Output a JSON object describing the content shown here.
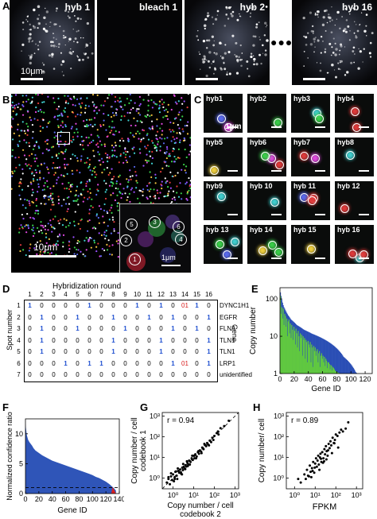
{
  "panels": {
    "A": {
      "letter": "A",
      "images": [
        "hyb 1",
        "bleach 1",
        "hyb 2",
        "hyb 16"
      ],
      "scale_label": "10μm",
      "ellipsis": "●●●"
    },
    "B": {
      "letter": "B",
      "scale_label": "10μm",
      "inset_scale": "1μm",
      "inset_spots": [
        "1",
        "2",
        "3",
        "4",
        "5",
        "6"
      ]
    },
    "C": {
      "letter": "C",
      "tiles": [
        "hyb1",
        "hyb2",
        "hyb3",
        "hyb4",
        "hyb5",
        "hyb6",
        "hyb7",
        "hyb8",
        "hyb9",
        "hyb 10",
        "hyb 11",
        "hyb 12",
        "hyb 13",
        "hyb 14",
        "hyb 15",
        "hyb 16"
      ],
      "scale_label": "1μm"
    },
    "D": {
      "letter": "D",
      "title": "Hybridization round",
      "row_axis": "Spot number",
      "gene_axis": "Gene",
      "rounds": [
        "1",
        "2",
        "3",
        "4",
        "5",
        "6",
        "7",
        "8",
        "9",
        "10",
        "11",
        "12",
        "13",
        "14",
        "15",
        "16"
      ],
      "rows": [
        {
          "spot": "1",
          "codes": [
            "1",
            "0",
            "0",
            "0",
            "0",
            "1",
            "0",
            "0",
            "0",
            "1",
            "0",
            "1",
            "0",
            "0",
            "1",
            "0"
          ],
          "gene": "DYNC1H1"
        },
        {
          "spot": "2",
          "codes": [
            "0",
            "1",
            "0",
            "0",
            "1",
            "0",
            "0",
            "1",
            "0",
            "0",
            "1",
            "0",
            "1",
            "0",
            "0",
            "1"
          ],
          "gene": "EGFR"
        },
        {
          "spot": "3",
          "codes": [
            "0",
            "1",
            "0",
            "0",
            "1",
            "0",
            "0",
            "0",
            "1",
            "0",
            "0",
            "0",
            "1",
            "0",
            "1",
            "0"
          ],
          "gene": "FLNA"
        },
        {
          "spot": "4",
          "codes": [
            "0",
            "1",
            "0",
            "0",
            "0",
            "0",
            "0",
            "1",
            "0",
            "0",
            "0",
            "1",
            "0",
            "0",
            "0",
            "1"
          ],
          "gene": "TLN1"
        },
        {
          "spot": "5",
          "codes": [
            "0",
            "1",
            "0",
            "0",
            "0",
            "0",
            "0",
            "1",
            "0",
            "0",
            "0",
            "1",
            "0",
            "0",
            "0",
            "1"
          ],
          "gene": "TLN1"
        },
        {
          "spot": "6",
          "codes": [
            "0",
            "0",
            "0",
            "1",
            "0",
            "1",
            "1",
            "0",
            "0",
            "0",
            "0",
            "0",
            "1",
            "0",
            "0",
            "1"
          ],
          "gene": "LRP1"
        },
        {
          "spot": "7",
          "codes": [
            "0",
            "0",
            "0",
            "0",
            "0",
            "0",
            "0",
            "0",
            "0",
            "0",
            "0",
            "0",
            "0",
            "0",
            "0",
            "0"
          ],
          "gene": "unidentified"
        }
      ],
      "red_error_cells": [
        [
          0,
          13
        ],
        [
          5,
          13
        ]
      ],
      "red_error_glyphs": [
        "01",
        "01"
      ]
    }
  },
  "chart_data": [
    {
      "panel": "E",
      "type": "bar",
      "xlabel": "Gene ID",
      "ylabel": "Copy number",
      "xticks": [
        "0",
        "20",
        "40",
        "60",
        "80",
        "100",
        "120"
      ],
      "yticks": [
        "1",
        "10",
        "100"
      ],
      "ylim": [
        1,
        200
      ],
      "yscale": "log",
      "series": [
        {
          "values": [
            150,
            120,
            95,
            80,
            68,
            60,
            55,
            50,
            46,
            42,
            39,
            36,
            34,
            32,
            30,
            28,
            27,
            26,
            25,
            24,
            23,
            22,
            21,
            20,
            19.5,
            19,
            18.5,
            18,
            17.5,
            17,
            16.5,
            16,
            15.5,
            15,
            14.7,
            14.4,
            14.1,
            13.8,
            13.5,
            13.2,
            13,
            12.7,
            12.4,
            12.1,
            11.8,
            11.6,
            11.4,
            11.2,
            11,
            10.8,
            10.6,
            10.4,
            10.2,
            10,
            9.8,
            9.6,
            9.4,
            9.2,
            9,
            8.8,
            8.6,
            8.4,
            8.2,
            8,
            7.8,
            7.6,
            7.4,
            7.2,
            7,
            6.8,
            6.6,
            6.4,
            6.2,
            6,
            5.8,
            5.6,
            5.4,
            5.2,
            5,
            4.8,
            4.6,
            4.4,
            4.2,
            4,
            3.8,
            3.6,
            3.4,
            3.2,
            3,
            2.8,
            2.7,
            2.6,
            2.5,
            2.4,
            2.3,
            2.2,
            2.1,
            2,
            1.9,
            1.8,
            1.7,
            1.6,
            1.5,
            1.4,
            1.3,
            1.2,
            1.1,
            1.05
          ]
        },
        {
          "values": [
            120,
            40,
            60,
            30,
            55,
            20,
            40,
            35,
            18,
            30,
            10,
            25,
            28,
            12,
            22,
            9,
            20,
            15,
            8,
            18,
            14,
            6,
            16,
            12,
            5,
            14,
            10,
            4,
            12,
            9,
            11,
            3,
            10,
            8,
            9,
            2.5,
            8,
            7,
            2,
            7.5,
            6,
            5,
            7,
            2,
            6,
            5,
            1.5,
            5.5,
            4,
            5,
            3,
            4,
            4.5,
            2,
            3.5,
            4,
            1.5,
            3,
            3.5,
            2.5,
            3,
            2,
            2.8,
            1.6,
            2.5,
            2.2,
            1.4,
            2,
            2,
            1.8,
            1.3,
            1.7,
            1.6,
            1.2,
            1.5,
            1.4,
            1.3,
            1.2,
            1.15,
            1.1,
            1.1,
            1.05,
            1.05
          ]
        }
      ]
    },
    {
      "panel": "F",
      "type": "area",
      "xlabel": "Gene ID",
      "ylabel": "Normalized confidence ratio",
      "xticks": [
        "0",
        "20",
        "40",
        "60",
        "80",
        "100",
        "120",
        "140"
      ],
      "yticks": [
        "0",
        "5",
        "10"
      ],
      "xlim": [
        0,
        140
      ],
      "ylim": [
        0,
        12.5
      ],
      "x": [
        0,
        2,
        4,
        6,
        8,
        10,
        12,
        15,
        20,
        25,
        30,
        35,
        40,
        45,
        50,
        55,
        60,
        65,
        70,
        75,
        80,
        85,
        90,
        95,
        100,
        105,
        110,
        115,
        120,
        125,
        128,
        130,
        132,
        135
      ],
      "values": [
        11.6,
        9.8,
        9.0,
        8.6,
        8.3,
        8.0,
        7.6,
        7.2,
        6.8,
        6.4,
        6.1,
        5.8,
        5.5,
        5.3,
        5.1,
        4.9,
        4.7,
        4.5,
        4.3,
        4.1,
        3.9,
        3.7,
        3.5,
        3.3,
        3.1,
        2.8,
        2.6,
        2.3,
        2.0,
        1.6,
        1.3,
        1.1,
        0.9,
        0.5
      ],
      "threshold": 1
    },
    {
      "panel": "G",
      "type": "scatter",
      "annotation": "r = 0.94",
      "xlabel": "Copy number / cell codebook 2",
      "ylabel": "Copy number / cell codebook 1",
      "xticks": [
        "10⁰",
        "10¹",
        "10²",
        "10³"
      ],
      "yticks": [
        "10⁰",
        "10¹",
        "10²",
        "10³"
      ],
      "xlim": [
        0.3,
        1500
      ],
      "ylim": [
        0.3,
        1500
      ],
      "scale": "log",
      "x": [
        0.5,
        0.6,
        0.7,
        0.8,
        0.9,
        1,
        1.1,
        1.2,
        1.3,
        1.5,
        1.6,
        1.8,
        2,
        2.2,
        2.5,
        2.8,
        3,
        3.3,
        3.6,
        4,
        4.4,
        5,
        5.5,
        6,
        7,
        8,
        9,
        10,
        11,
        12,
        14,
        16,
        18,
        20,
        23,
        26,
        30,
        35,
        40,
        45,
        50,
        60,
        70,
        80,
        100,
        130,
        160,
        200,
        300,
        500,
        0.8,
        1.2,
        1.7,
        2.4,
        3.1,
        3.9,
        4.7,
        6.5,
        8.5,
        13,
        17,
        24,
        33,
        55,
        90,
        150,
        0.6,
        1.4,
        2.7,
        5.2
      ],
      "y": [
        0.6,
        0.9,
        0.5,
        1.2,
        0.8,
        1.5,
        0.7,
        1.1,
        2,
        1.3,
        0.9,
        2.2,
        1.8,
        2.6,
        1.6,
        3.2,
        2.4,
        3.5,
        2.9,
        4.2,
        3.6,
        5.5,
        4.5,
        7,
        6,
        9,
        7.5,
        12,
        9,
        14,
        11,
        18,
        15,
        22,
        19,
        30,
        25,
        40,
        35,
        50,
        42,
        65,
        55,
        90,
        110,
        150,
        130,
        260,
        330,
        600,
        1.7,
        0.9,
        2.9,
        1.9,
        4.8,
        2.7,
        6.5,
        4.5,
        12,
        9,
        20,
        16,
        45,
        38,
        70,
        180,
        1.1,
        2.1,
        1.5,
        3.8
      ],
      "reference_line": "y = x"
    },
    {
      "panel": "H",
      "type": "scatter",
      "annotation": "r = 0.89",
      "xlabel": "FPKM",
      "ylabel": "Copy number/ cell",
      "xticks": [
        "10⁰",
        "10¹",
        "10²",
        "10³"
      ],
      "yticks": [
        "10⁰",
        "10¹",
        "10²",
        "10³"
      ],
      "xlim": [
        0.4,
        2000
      ],
      "ylim": [
        0.3,
        1500
      ],
      "scale": "log",
      "x": [
        2,
        3,
        3.5,
        4,
        5,
        5.5,
        6,
        7,
        8,
        9,
        10,
        11,
        12,
        13,
        14,
        15,
        17,
        18,
        20,
        22,
        25,
        28,
        30,
        33,
        36,
        40,
        45,
        50,
        55,
        60,
        70,
        80,
        90,
        100,
        120,
        150,
        180,
        220,
        300,
        400,
        6.5,
        9.5,
        16,
        24,
        35,
        65,
        130,
        4.5,
        7.5,
        19,
        27,
        42,
        85,
        1.5
      ],
      "y": [
        0.6,
        1.5,
        0.9,
        2.5,
        1.2,
        4,
        2,
        3,
        6,
        1.8,
        5,
        9,
        3.5,
        7,
        12,
        4.5,
        10,
        15,
        6,
        18,
        9,
        25,
        14,
        35,
        20,
        12,
        45,
        28,
        60,
        38,
        90,
        50,
        70,
        130,
        110,
        160,
        220,
        180,
        250,
        500,
        1.1,
        3.2,
        2.5,
        5.5,
        8,
        16,
        30,
        1.3,
        2.2,
        8.5,
        6.5,
        22,
        48,
        0.9
      ]
    }
  ]
}
